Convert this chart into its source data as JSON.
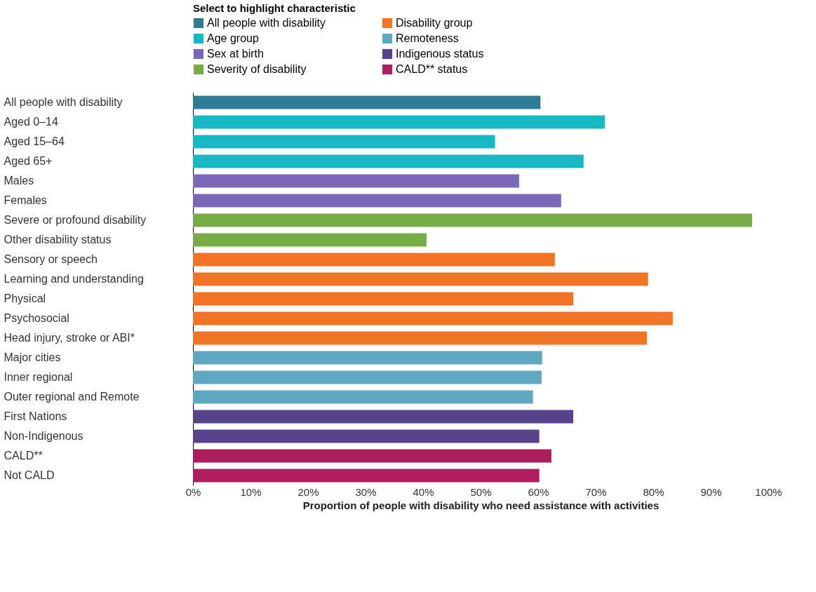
{
  "chart_data": {
    "type": "bar",
    "orientation": "horizontal",
    "xlabel": "Proportion of people with disability who need assistance with activities",
    "legend_title": "Select to highlight characteristic",
    "legend": "top",
    "categories": [
      "All people with disability",
      "Aged 0–14",
      "Aged 15–64",
      "Aged 65+",
      "Males",
      "Females",
      "Severe or profound disability",
      "Other disability status",
      "Sensory or speech",
      "Learning and understanding",
      "Physical",
      "Psychosocial",
      "Head injury, stroke or ABI*",
      "Major cities",
      "Inner regional",
      "Outer regional and Remote",
      "First Nations",
      "Non-Indigenous",
      "CALD**",
      "Not CALD"
    ],
    "series": [
      {
        "name": "All people with disability",
        "color": "#2e7b96",
        "values": [
          60.4,
          null,
          null,
          null,
          null,
          null,
          null,
          null,
          null,
          null,
          null,
          null,
          null,
          null,
          null,
          null,
          null,
          null,
          null,
          null
        ]
      },
      {
        "name": "Age group",
        "color": "#17b8c4",
        "values": [
          null,
          71.6,
          52.5,
          67.9,
          null,
          null,
          null,
          null,
          null,
          null,
          null,
          null,
          null,
          null,
          null,
          null,
          null,
          null,
          null,
          null
        ]
      },
      {
        "name": "Sex at birth",
        "color": "#7b68b8",
        "values": [
          null,
          null,
          null,
          null,
          56.7,
          64.0,
          null,
          null,
          null,
          null,
          null,
          null,
          null,
          null,
          null,
          null,
          null,
          null,
          null,
          null
        ]
      },
      {
        "name": "Severity of disability",
        "color": "#76ad46",
        "values": [
          null,
          null,
          null,
          null,
          null,
          null,
          97.2,
          40.6,
          null,
          null,
          null,
          null,
          null,
          null,
          null,
          null,
          null,
          null,
          null,
          null
        ]
      },
      {
        "name": "Disability group",
        "color": "#f47425",
        "values": [
          null,
          null,
          null,
          null,
          null,
          null,
          null,
          null,
          62.9,
          79.1,
          66.1,
          83.4,
          78.9,
          null,
          null,
          null,
          null,
          null,
          null,
          null
        ]
      },
      {
        "name": "Remoteness",
        "color": "#5ea8c2",
        "values": [
          null,
          null,
          null,
          null,
          null,
          null,
          null,
          null,
          null,
          null,
          null,
          null,
          null,
          60.7,
          60.6,
          59.1,
          null,
          null,
          null,
          null
        ]
      },
      {
        "name": "Indigenous status",
        "color": "#56438a",
        "values": [
          null,
          null,
          null,
          null,
          null,
          null,
          null,
          null,
          null,
          null,
          null,
          null,
          null,
          null,
          null,
          null,
          66.1,
          60.2,
          null,
          null
        ]
      },
      {
        "name": "CALD** status",
        "color": "#ae1e5a",
        "values": [
          null,
          null,
          null,
          null,
          null,
          null,
          null,
          null,
          null,
          null,
          null,
          null,
          null,
          null,
          null,
          null,
          null,
          null,
          62.3,
          60.2
        ]
      }
    ],
    "xlim": [
      0,
      100
    ],
    "xticks": [
      {
        "value": 0,
        "label": "0%"
      },
      {
        "value": 10,
        "label": "10%"
      },
      {
        "value": 20,
        "label": "20%"
      },
      {
        "value": 30,
        "label": "30%"
      },
      {
        "value": 40,
        "label": "40%"
      },
      {
        "value": 50,
        "label": "50%"
      },
      {
        "value": 60,
        "label": "60%"
      },
      {
        "value": 70,
        "label": "70%"
      },
      {
        "value": 80,
        "label": "80%"
      },
      {
        "value": 90,
        "label": "90%"
      },
      {
        "value": 100,
        "label": "100%"
      }
    ],
    "grid": false
  }
}
